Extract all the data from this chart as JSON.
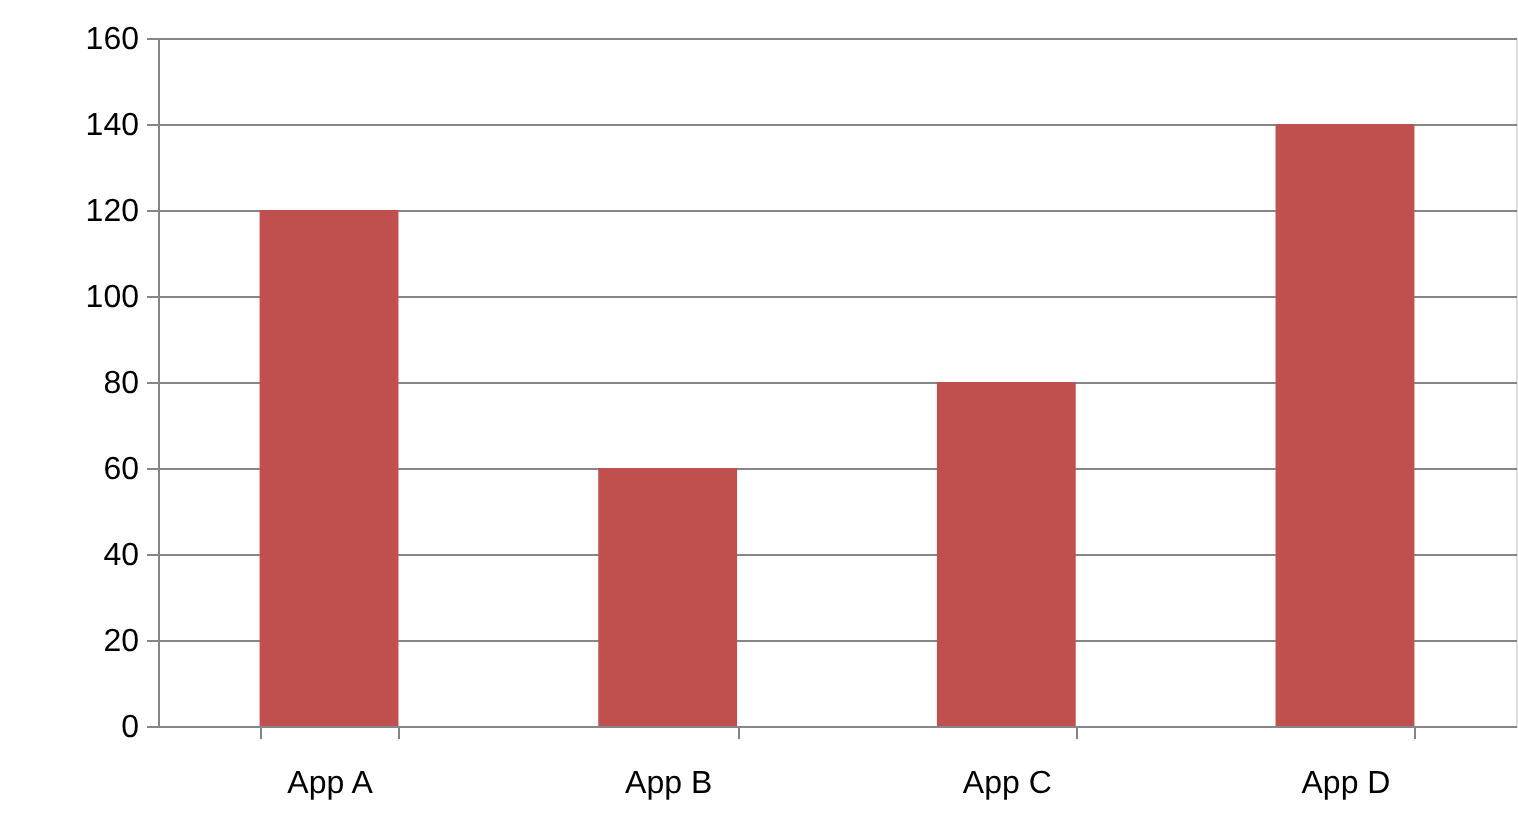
{
  "chart_data": {
    "type": "bar",
    "categories": [
      "App A",
      "App B",
      "App C",
      "App D"
    ],
    "values": [
      120,
      60,
      80,
      140
    ],
    "color": "#c0504d",
    "ylim": [
      0,
      160
    ],
    "yticks": [
      0,
      20,
      40,
      60,
      80,
      100,
      120,
      140,
      160
    ],
    "grid": "y"
  }
}
